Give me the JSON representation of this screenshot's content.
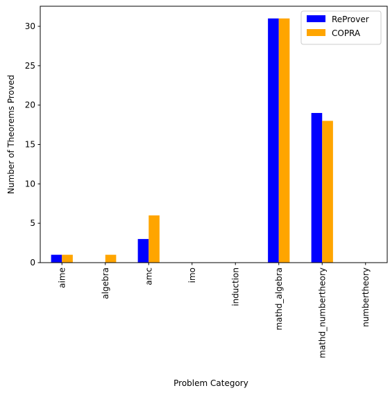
{
  "chart_data": {
    "type": "bar",
    "title": "",
    "xlabel": "Problem Category",
    "ylabel": "Number of Theorems Proved",
    "categories": [
      "aime",
      "algebra",
      "amc",
      "imo",
      "induction",
      "mathd_algebra",
      "mathd_numbertheory",
      "numbertheory"
    ],
    "series": [
      {
        "name": "ReProver",
        "color": "#0000ff",
        "values": [
          1,
          0,
          3,
          0,
          0,
          31,
          19,
          0
        ]
      },
      {
        "name": "COPRA",
        "color": "#ffa500",
        "values": [
          1,
          1,
          6,
          0,
          0,
          31,
          18,
          0
        ]
      }
    ],
    "ylim": [
      0,
      32.55
    ],
    "yticks": [
      0,
      5,
      10,
      15,
      20,
      25,
      30
    ],
    "grid": false,
    "legend": "top-right"
  }
}
